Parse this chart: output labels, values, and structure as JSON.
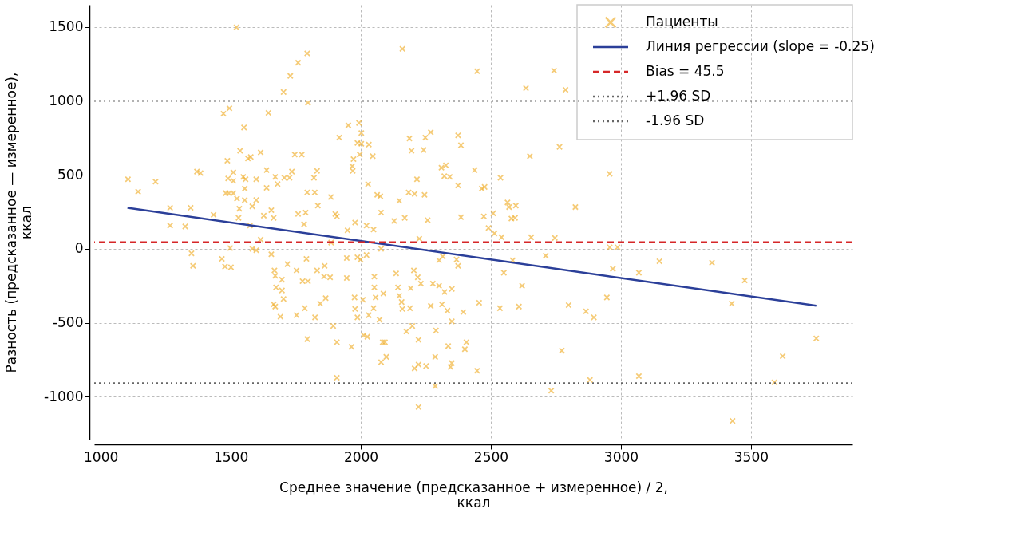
{
  "chart_data": {
    "type": "scatter",
    "xlabel": "Среднее значение (предсказанное + измеренное) / 2,\nккал",
    "ylabel": "Разность (предсказанное — измеренное),\nккал",
    "xlim": [
      975,
      3890
    ],
    "ylim": [
      -1290,
      1650
    ],
    "xticks": [
      1000,
      1500,
      2000,
      2500,
      3000,
      3500
    ],
    "yticks": [
      -1000,
      -500,
      0,
      500,
      1000,
      1500
    ],
    "grid": true,
    "legend": "top right",
    "series": [
      {
        "name": "Пациенты",
        "marker": "cross",
        "color": "#f0b030",
        "x": [
          1105,
          1144,
          1211,
          1267,
          1267,
          1325,
          1346,
          1349,
          1355,
          1370,
          1384,
          1434,
          1466,
          1472,
          1495,
          1487,
          1490,
          1493,
          1498,
          1501,
          1478,
          1522,
          1524,
          1533,
          1530,
          1551,
          1566,
          1577,
          1557,
          1554,
          1574,
          1583,
          1615,
          1615,
          1638,
          1645,
          1680,
          1665,
          1671,
          1668,
          1674,
          1671,
          1697,
          1703,
          1703,
          1729,
          1759,
          1794,
          1797,
          1726,
          1735,
          1746,
          1773,
          1782,
          1791,
          1776,
          1785,
          1794,
          1820,
          1835,
          1859,
          1865,
          1894,
          1908,
          1886,
          1908,
          1917,
          1952,
          1972,
          1969,
          1978,
          1987,
          1978,
          1987,
          2002,
          2002,
          2028,
          2022,
          2046,
          2031,
          2025,
          2052,
          2057,
          2078,
          2075,
          2072,
          2084,
          2098,
          2148,
          2136,
          2160,
          2148,
          2157,
          2187,
          2195,
          2207,
          2216,
          2219,
          2198,
          2222,
          2222,
          2248,
          2245,
          2257,
          2269,
          2277,
          2286,
          2289,
          2310,
          2321,
          2315,
          2336,
          2350,
          2350,
          2374,
          2385,
          2385,
          2368,
          2394,
          2400,
          2438,
          2447,
          2447,
          2455,
          2473,
          2476,
          2514,
          2537,
          2535,
          2564,
          2584,
          2593,
          2596,
          2608,
          2620,
          2635,
          2650,
          2743,
          2787,
          2764,
          2825,
          2711,
          2732,
          2773,
          2799,
          2550,
          2655,
          2746,
          2541,
          2866,
          2957,
          2957,
          2987,
          2969,
          3069,
          3148,
          3350,
          3476,
          3426,
          2946,
          2896,
          2881,
          3069,
          3590,
          3622,
          3751,
          3429,
          1598,
          1656,
          1697,
          1718,
          1753,
          1797,
          1832,
          1861,
          1882,
          1665,
          1691,
          1753,
          1824,
          1844,
          1908,
          1536,
          1510,
          1510,
          1548,
          1598,
          1638,
          1671,
          1706,
          1832,
          1794,
          1823,
          1885,
          1481,
          1510,
          1554,
          1583,
          1598,
          1627,
          1656,
          1759,
          1788,
          1902,
          1993,
          1987,
          2031,
          1967,
          1996,
          2242,
          2269,
          2327,
          2342,
          2374,
          2465,
          2063,
          2184,
          2078,
          2128,
          2169,
          2509,
          2570,
          2579,
          1949,
          2049,
          1946,
          2022,
          1999,
          1946,
          2204,
          2301,
          2374,
          2491,
          2225,
          2052,
          2087,
          2143,
          2192,
          2231,
          2301,
          2322,
          2008,
          1976,
          2049,
          2160,
          2189,
          2312,
          2333,
          2350,
          2011,
          1964,
          2093,
          2175,
          2222,
          2406,
          2078,
          2286,
          2251,
          2207,
          2345
        ],
        "values": [
          470,
          386,
          454,
          277,
          157,
          151,
          277,
          -31,
          -115,
          522,
          512,
          230,
          -68,
          914,
          950,
          595,
          475,
          376,
          5,
          -125,
          -120,
          1498,
          339,
          271,
          209,
          820,
          611,
          621,
          470,
          407,
          157,
          0,
          63,
          652,
          532,
          919,
          438,
          209,
          -183,
          -146,
          -261,
          -391,
          -282,
          -339,
          1060,
          1169,
          1258,
          1321,
          987,
          480,
          522,
          637,
          637,
          167,
          -68,
          -219,
          -402,
          -611,
          480,
          292,
          -188,
          -334,
          -522,
          -632,
          42,
          219,
          752,
          835,
          606,
          527,
          177,
          -57,
          -407,
          -464,
          783,
          710,
          438,
          157,
          626,
          -449,
          -595,
          -188,
          -329,
          0,
          355,
          -480,
          -632,
          -731,
          324,
          -167,
          1352,
          -318,
          -360,
          746,
          663,
          371,
          470,
          -193,
          -522,
          -783,
          -1070,
          752,
          365,
          193,
          -386,
          -235,
          -929,
          -553,
          548,
          491,
          -52,
          -658,
          -773,
          -271,
          767,
          700,
          214,
          -73,
          -428,
          -679,
          532,
          1201,
          -825,
          -365,
          219,
          418,
          104,
          480,
          -402,
          313,
          -78,
          209,
          292,
          -391,
          -250,
          1086,
          626,
          1205,
          1075,
          689,
          282,
          -47,
          -960,
          -689,
          -381,
          -162,
          78,
          73,
          78,
          -423,
          506,
          10,
          10,
          -136,
          -162,
          -84,
          -94,
          -214,
          -371,
          -329,
          -464,
          -887,
          -861,
          -903,
          -726,
          -606,
          -1164,
          -10,
          -37,
          -209,
          -104,
          -146,
          -219,
          -146,
          -115,
          -193,
          -376,
          -459,
          -449,
          -464,
          -371,
          -872,
          663,
          517,
          459,
          486,
          470,
          412,
          486,
          480,
          527,
          381,
          381,
          350,
          376,
          376,
          329,
          287,
          329,
          224,
          261,
          235,
          245,
          235,
          851,
          715,
          705,
          559,
          637,
          668,
          788,
          564,
          486,
          428,
          407,
          365,
          381,
          245,
          188,
          209,
          240,
          282,
          204,
          125,
          130,
          -63,
          -42,
          -73,
          -198,
          -146,
          -78,
          -115,
          141,
          68,
          -261,
          -303,
          -261,
          -266,
          -235,
          -250,
          -292,
          -345,
          -329,
          -402,
          -407,
          -402,
          -376,
          -418,
          -491,
          -585,
          -663,
          -632,
          -559,
          -616,
          -632,
          -767,
          -731,
          -793,
          -809,
          -799
        ]
      },
      {
        "name": "Линия регрессии (slope = -0.25)",
        "type": "line",
        "color": "#2b3f99",
        "line_style": "solid",
        "marker": "none",
        "x": [
          1103,
          3751
        ],
        "values": [
          277,
          -385
        ]
      }
    ],
    "ref_lines": [
      {
        "axis": "y",
        "value": 45.5,
        "label": "Bias = 45.5",
        "color": "#d62728",
        "line_style": "dashed"
      },
      {
        "axis": "y",
        "value": 1000,
        "label": "+1.96 SD",
        "color": "#666666",
        "line_style": "dotted"
      },
      {
        "axis": "y",
        "value": -909,
        "label": "-1.96 SD",
        "color": "#666666",
        "line_style": "dotted"
      }
    ]
  }
}
